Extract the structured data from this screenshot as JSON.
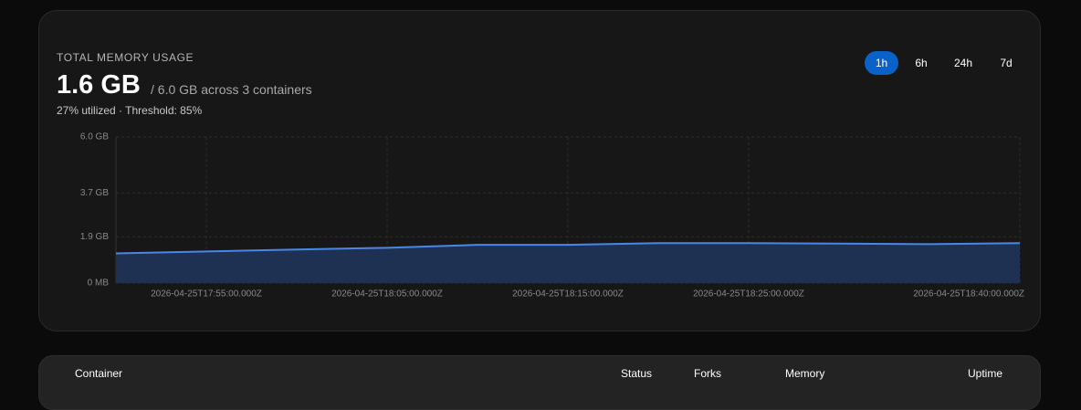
{
  "header": {
    "label": "TOTAL MEMORY USAGE",
    "value": "1.6 GB",
    "detail": "/ 6.0 GB across 3 containers",
    "sub": "27% utilized · Threshold: 85%"
  },
  "ranges": [
    {
      "label": "1h",
      "active": true
    },
    {
      "label": "6h",
      "active": false
    },
    {
      "label": "24h",
      "active": false
    },
    {
      "label": "7d",
      "active": false
    }
  ],
  "chart_data": {
    "type": "area",
    "x": [
      "2026-04-25T17:50:00.000Z",
      "2026-04-25T17:55:00.000Z",
      "2026-04-25T18:00:00.000Z",
      "2026-04-25T18:05:00.000Z",
      "2026-04-25T18:10:00.000Z",
      "2026-04-25T18:15:00.000Z",
      "2026-04-25T18:20:00.000Z",
      "2026-04-25T18:25:00.000Z",
      "2026-04-25T18:30:00.000Z",
      "2026-04-25T18:35:00.000Z",
      "2026-04-25T18:40:00.000Z"
    ],
    "values": [
      1.22,
      1.3,
      1.38,
      1.45,
      1.57,
      1.57,
      1.64,
      1.64,
      1.62,
      1.6,
      1.64
    ],
    "color": "#4a86e8",
    "fill_color": "#1f3152",
    "xlim": [
      "2026-04-25T17:50:00.000Z",
      "2026-04-25T18:40:00.000Z"
    ],
    "ylim": [
      0,
      6
    ],
    "xticks": [
      "2026-04-25T17:55:00.000Z",
      "2026-04-25T18:05:00.000Z",
      "2026-04-25T18:15:00.000Z",
      "2026-04-25T18:25:00.000Z",
      "2026-04-25T18:40:00.000Z"
    ],
    "yticks": [
      {
        "value": 0,
        "label": "0 MB"
      },
      {
        "value": 1.9,
        "label": "1.9 GB"
      },
      {
        "value": 3.7,
        "label": "3.7 GB"
      },
      {
        "value": 6,
        "label": "6.0 GB"
      }
    ],
    "grid": true
  },
  "table": {
    "columns": [
      "Container",
      "Status",
      "Forks",
      "Memory",
      "Uptime"
    ]
  }
}
